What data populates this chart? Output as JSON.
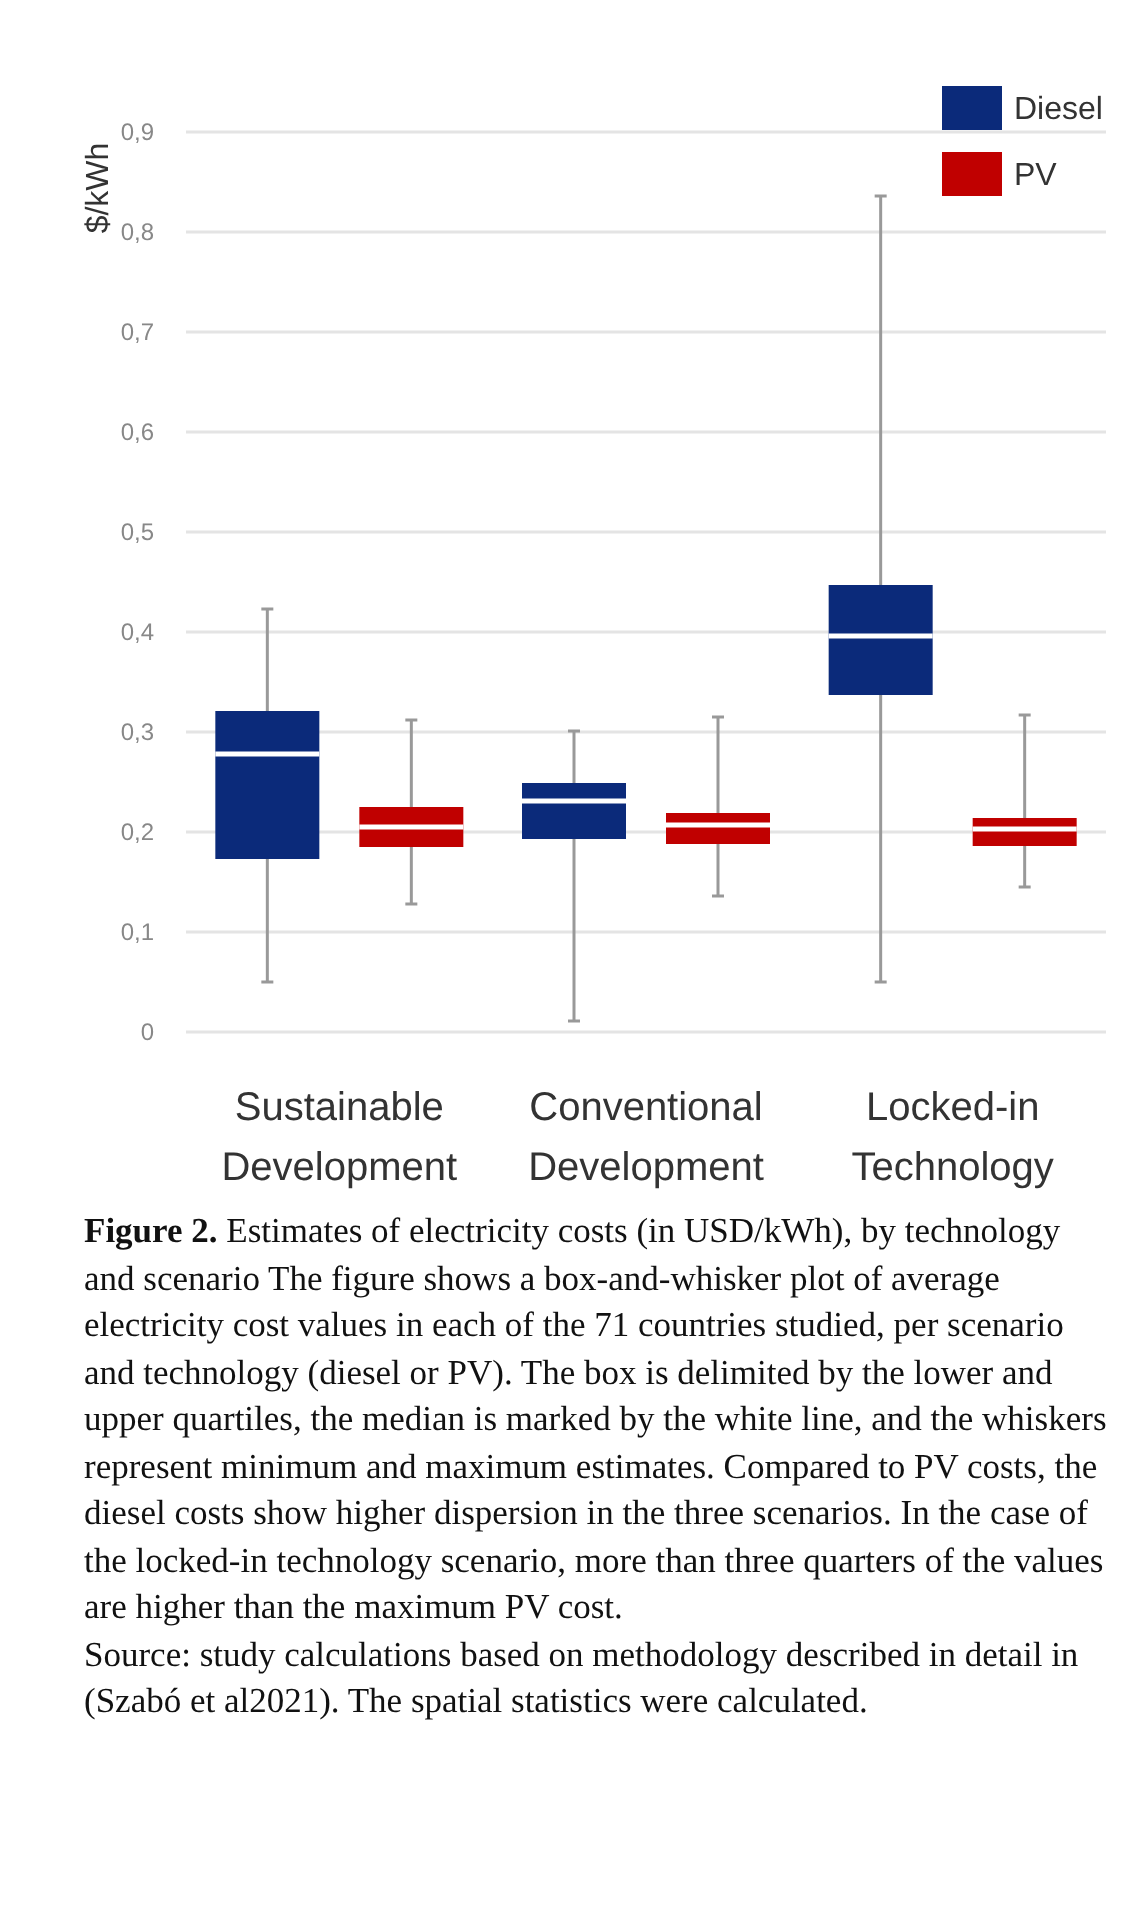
{
  "chart_data": {
    "type": "box",
    "ylabel": "$/kWh",
    "categories": [
      "Sustainable Development",
      "Conventional Development",
      "Locked-in Technology"
    ],
    "series": [
      {
        "name": "Diesel",
        "color": "#0b2a7a",
        "boxes": [
          {
            "low": 0.05,
            "q1": 0.173,
            "median": 0.278,
            "q3": 0.321,
            "high": 0.423
          },
          {
            "low": 0.011,
            "q1": 0.193,
            "median": 0.231,
            "q3": 0.249,
            "high": 0.301
          },
          {
            "low": 0.05,
            "q1": 0.337,
            "median": 0.396,
            "q3": 0.447,
            "high": 0.836
          }
        ]
      },
      {
        "name": "PV",
        "color": "#c00000",
        "boxes": [
          {
            "low": 0.128,
            "q1": 0.185,
            "median": 0.205,
            "q3": 0.225,
            "high": 0.312
          },
          {
            "low": 0.136,
            "q1": 0.188,
            "median": 0.207,
            "q3": 0.219,
            "high": 0.315
          },
          {
            "low": 0.145,
            "q1": 0.186,
            "median": 0.203,
            "q3": 0.214,
            "high": 0.317
          }
        ]
      }
    ],
    "ylim": [
      0,
      0.9
    ],
    "yticks": [
      0,
      {
        "value": 0.1,
        "label": "0,1"
      },
      {
        "value": 0.2,
        "label": "0,2"
      },
      {
        "value": 0.3,
        "label": "0,3"
      },
      {
        "value": 0.4,
        "label": "0,4"
      },
      {
        "value": 0.5,
        "label": "0,5"
      },
      {
        "value": 0.6,
        "label": "0,6"
      },
      {
        "value": 0.7,
        "label": "0,7"
      },
      {
        "value": 0.8,
        "label": "0,8"
      },
      {
        "value": 0.9,
        "label": "0,9"
      }
    ],
    "grid": "y",
    "legend": "top right",
    "annotations": [
      "Figure 2.",
      "Estimates of electricity costs (in USD/kWh), by technology and scenario The figure shows a box-and-whisker plot of average electricity cost values in each of the 71 countries studied, per scenario and technology (diesel or PV). The box is delimited by the lower and upper quartiles, the median is marked by the white line, and the whiskers represent minimum and maximum estimates. Compared to PV costs, the diesel costs show higher dispersion in the three scenarios. In the case of the locked-in technology scenario, more than three quarters of the values are higher than the maximum PV cost.",
      "Source: study calculations based on methodology described in detail in (Szabó et al2021). The spatial statistics were calculated."
    ]
  }
}
